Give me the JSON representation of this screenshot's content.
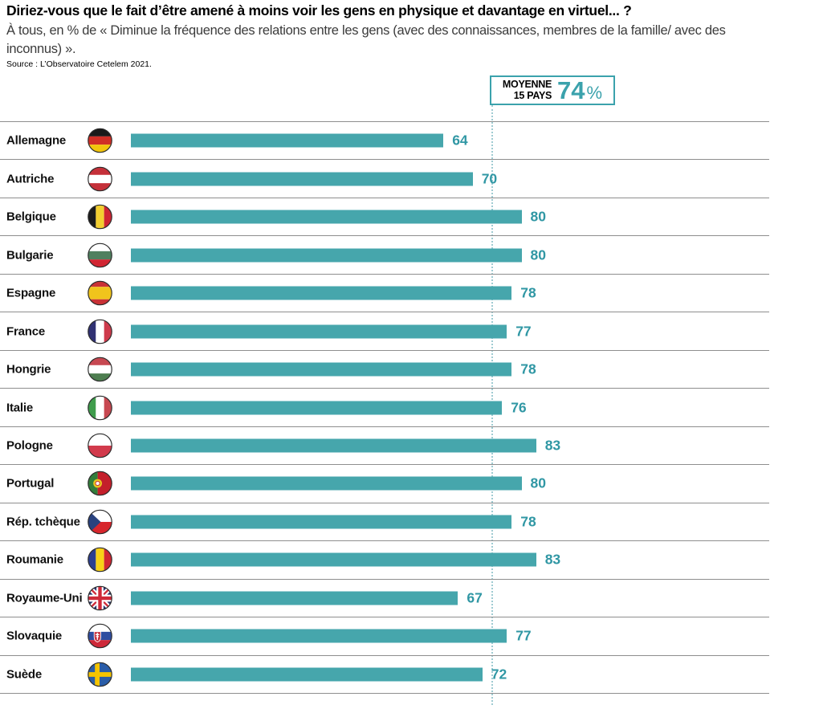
{
  "header": {
    "title": "Diriez-vous que le fait d’être amené à moins voir les gens en physique et davantage en virtuel... ?",
    "subtitle": "À tous, en % de « Diminue la fréquence des relations entre les gens (avec des connaissances, membres de la famille/ avec des inconnus) ».",
    "source": "Source : L’Observatoire Cetelem 2021."
  },
  "average_box": {
    "label_line1": "MOYENNE",
    "label_line2": "15 PAYS",
    "value": "74",
    "unit": "%"
  },
  "colors": {
    "accent": "#3BA2AC",
    "bar": "#46A6AC",
    "value_text": "#3097A4",
    "average_line": "#9FCBD2"
  },
  "chart_data": {
    "type": "bar",
    "orientation": "horizontal",
    "unit": "%",
    "title": "Diriez-vous que le fait d’être amené à moins voir les gens en physique et davantage en virtuel... ?",
    "average": 74,
    "average_label": "MOYENNE 15 PAYS 74 %",
    "xlim": [
      0,
      100
    ],
    "grid": false,
    "categories": [
      "Allemagne",
      "Autriche",
      "Belgique",
      "Bulgarie",
      "Espagne",
      "France",
      "Hongrie",
      "Italie",
      "Pologne",
      "Portugal",
      "Rép. tchèque",
      "Roumanie",
      "Royaume-Uni",
      "Slovaquie",
      "Suède"
    ],
    "values": [
      64,
      70,
      80,
      80,
      78,
      77,
      78,
      76,
      83,
      80,
      78,
      83,
      67,
      77,
      72
    ],
    "flags": [
      "de",
      "at",
      "be",
      "bg",
      "es",
      "fr",
      "hu",
      "it",
      "pl",
      "pt",
      "cz",
      "ro",
      "gb",
      "sk",
      "se"
    ]
  }
}
